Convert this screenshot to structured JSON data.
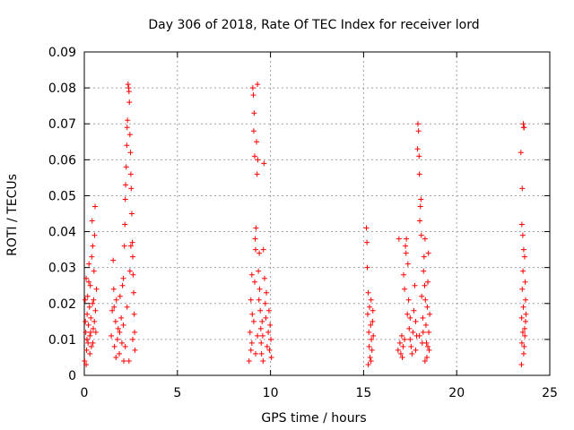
{
  "chart_data": {
    "type": "scatter",
    "title": "Day 306 of 2018, Rate Of TEC Index for receiver lord",
    "xlabel": "GPS time / hours",
    "ylabel": "ROTI / TECUs",
    "xlim": [
      0,
      25
    ],
    "ylim": [
      0,
      0.09
    ],
    "x_ticks": [
      0,
      5,
      10,
      15,
      20,
      25
    ],
    "x_tick_labels": [
      "0",
      "5",
      "10",
      "15",
      "20",
      "25"
    ],
    "y_ticks": [
      0,
      0.01,
      0.02,
      0.03,
      0.04,
      0.05,
      0.06,
      0.07,
      0.08,
      0.09
    ],
    "y_tick_labels": [
      "0",
      "0.01",
      "0.02",
      "0.03",
      "0.04",
      "0.05",
      "0.06",
      "0.07",
      "0.08",
      "0.09"
    ],
    "grid": true,
    "marker": "+",
    "color": "#ff0000",
    "series": [
      {
        "points": [
          [
            0.02,
            0.004
          ],
          [
            0.05,
            0.021
          ],
          [
            0.08,
            0.012
          ],
          [
            0.1,
            0.027
          ],
          [
            0.12,
            0.007
          ],
          [
            0.15,
            0.017
          ],
          [
            0.18,
            0.022
          ],
          [
            0.2,
            0.009
          ],
          [
            0.22,
            0.014
          ],
          [
            0.25,
            0.031
          ],
          [
            0.28,
            0.019
          ],
          [
            0.3,
            0.011
          ],
          [
            0.32,
            0.025
          ],
          [
            0.35,
            0.016
          ],
          [
            0.38,
            0.008
          ],
          [
            0.4,
            0.033
          ],
          [
            0.42,
            0.043
          ],
          [
            0.45,
            0.036
          ],
          [
            0.48,
            0.013
          ],
          [
            0.5,
            0.021
          ],
          [
            0.52,
            0.029
          ],
          [
            0.55,
            0.039
          ],
          [
            0.58,
            0.047
          ],
          [
            0.6,
            0.018
          ],
          [
            0.62,
            0.012
          ],
          [
            0.65,
            0.024
          ],
          [
            0.06,
            0.015
          ],
          [
            0.14,
            0.01
          ],
          [
            0.24,
            0.026
          ],
          [
            0.34,
            0.012
          ],
          [
            0.44,
            0.02
          ],
          [
            0.54,
            0.015
          ],
          [
            0.1,
            0.003
          ],
          [
            0.3,
            0.006
          ],
          [
            0.46,
            0.009
          ],
          [
            1.45,
            0.011
          ],
          [
            1.5,
            0.018
          ],
          [
            1.55,
            0.032
          ],
          [
            1.58,
            0.024
          ],
          [
            1.62,
            0.008
          ],
          [
            1.68,
            0.015
          ],
          [
            1.72,
            0.021
          ],
          [
            1.78,
            0.01
          ],
          [
            1.82,
            0.013
          ],
          [
            1.88,
            0.006
          ],
          [
            1.92,
            0.022
          ],
          [
            1.98,
            0.016
          ],
          [
            2.02,
            0.009
          ],
          [
            2.05,
            0.025
          ],
          [
            2.1,
            0.014
          ],
          [
            2.12,
            0.004
          ],
          [
            2.15,
            0.036
          ],
          [
            2.18,
            0.042
          ],
          [
            2.2,
            0.049
          ],
          [
            2.22,
            0.053
          ],
          [
            2.25,
            0.058
          ],
          [
            2.28,
            0.064
          ],
          [
            2.3,
            0.069
          ],
          [
            2.32,
            0.071
          ],
          [
            2.35,
            0.081
          ],
          [
            2.38,
            0.08
          ],
          [
            2.4,
            0.079
          ],
          [
            2.42,
            0.076
          ],
          [
            2.45,
            0.067
          ],
          [
            2.48,
            0.062
          ],
          [
            2.5,
            0.056
          ],
          [
            2.52,
            0.052
          ],
          [
            2.55,
            0.045
          ],
          [
            2.58,
            0.037
          ],
          [
            2.6,
            0.033
          ],
          [
            2.62,
            0.028
          ],
          [
            2.65,
            0.023
          ],
          [
            2.68,
            0.017
          ],
          [
            2.7,
            0.012
          ],
          [
            2.72,
            0.007
          ],
          [
            2.45,
            0.029
          ],
          [
            2.3,
            0.019
          ],
          [
            2.1,
            0.027
          ],
          [
            1.9,
            0.012
          ],
          [
            1.7,
            0.005
          ],
          [
            2.4,
            0.004
          ],
          [
            2.6,
            0.01
          ],
          [
            2.2,
            0.008
          ],
          [
            1.6,
            0.019
          ],
          [
            2.5,
            0.036
          ],
          [
            8.85,
            0.004
          ],
          [
            8.9,
            0.012
          ],
          [
            8.95,
            0.021
          ],
          [
            9.0,
            0.028
          ],
          [
            9.02,
            0.017
          ],
          [
            9.05,
            0.08
          ],
          [
            9.08,
            0.078
          ],
          [
            9.1,
            0.068
          ],
          [
            9.12,
            0.073
          ],
          [
            9.15,
            0.061
          ],
          [
            9.18,
            0.038
          ],
          [
            9.2,
            0.035
          ],
          [
            9.22,
            0.041
          ],
          [
            9.25,
            0.065
          ],
          [
            9.28,
            0.056
          ],
          [
            9.3,
            0.081
          ],
          [
            9.32,
            0.06
          ],
          [
            9.35,
            0.029
          ],
          [
            9.38,
            0.021
          ],
          [
            9.4,
            0.034
          ],
          [
            9.42,
            0.024
          ],
          [
            9.45,
            0.018
          ],
          [
            9.48,
            0.013
          ],
          [
            9.5,
            0.009
          ],
          [
            9.52,
            0.006
          ],
          [
            9.55,
            0.015
          ],
          [
            9.58,
            0.011
          ],
          [
            9.62,
            0.035
          ],
          [
            9.65,
            0.059
          ],
          [
            9.68,
            0.027
          ],
          [
            9.72,
            0.02
          ],
          [
            9.75,
            0.016
          ],
          [
            9.78,
            0.023
          ],
          [
            9.82,
            0.008
          ],
          [
            9.88,
            0.012
          ],
          [
            9.92,
            0.018
          ],
          [
            9.95,
            0.007
          ],
          [
            9.98,
            0.014
          ],
          [
            10.02,
            0.01
          ],
          [
            10.05,
            0.005
          ],
          [
            9.0,
            0.009
          ],
          [
            9.1,
            0.015
          ],
          [
            9.2,
            0.006
          ],
          [
            9.3,
            0.011
          ],
          [
            9.15,
            0.026
          ],
          [
            9.6,
            0.004
          ],
          [
            8.95,
            0.007
          ],
          [
            15.15,
            0.041
          ],
          [
            15.18,
            0.037
          ],
          [
            15.2,
            0.03
          ],
          [
            15.22,
            0.017
          ],
          [
            15.25,
            0.023
          ],
          [
            15.28,
            0.012
          ],
          [
            15.3,
            0.008
          ],
          [
            15.32,
            0.019
          ],
          [
            15.35,
            0.005
          ],
          [
            15.38,
            0.014
          ],
          [
            15.4,
            0.021
          ],
          [
            15.42,
            0.01
          ],
          [
            15.45,
            0.007
          ],
          [
            15.48,
            0.015
          ],
          [
            15.5,
            0.018
          ],
          [
            15.52,
            0.011
          ],
          [
            15.25,
            0.003
          ],
          [
            15.4,
            0.004
          ],
          [
            16.85,
            0.007
          ],
          [
            16.9,
            0.038
          ],
          [
            16.95,
            0.009
          ],
          [
            17.0,
            0.006
          ],
          [
            17.05,
            0.011
          ],
          [
            17.08,
            0.005
          ],
          [
            17.12,
            0.008
          ],
          [
            17.15,
            0.028
          ],
          [
            17.2,
            0.024
          ],
          [
            17.25,
            0.036
          ],
          [
            17.28,
            0.034
          ],
          [
            17.3,
            0.038
          ],
          [
            17.35,
            0.017
          ],
          [
            17.38,
            0.031
          ],
          [
            17.42,
            0.021
          ],
          [
            17.45,
            0.013
          ],
          [
            17.5,
            0.01
          ],
          [
            17.55,
            0.008
          ],
          [
            17.6,
            0.006
          ],
          [
            17.65,
            0.012
          ],
          [
            17.7,
            0.018
          ],
          [
            17.75,
            0.025
          ],
          [
            17.8,
            0.015
          ],
          [
            17.85,
            0.011
          ],
          [
            17.9,
            0.063
          ],
          [
            17.92,
            0.07
          ],
          [
            17.95,
            0.068
          ],
          [
            17.98,
            0.061
          ],
          [
            18.0,
            0.056
          ],
          [
            18.02,
            0.043
          ],
          [
            18.05,
            0.047
          ],
          [
            18.08,
            0.049
          ],
          [
            18.1,
            0.039
          ],
          [
            18.12,
            0.022
          ],
          [
            18.15,
            0.009
          ],
          [
            18.18,
            0.016
          ],
          [
            18.2,
            0.012
          ],
          [
            18.22,
            0.029
          ],
          [
            18.25,
            0.033
          ],
          [
            18.28,
            0.025
          ],
          [
            18.3,
            0.038
          ],
          [
            18.32,
            0.021
          ],
          [
            18.35,
            0.014
          ],
          [
            18.38,
            0.009
          ],
          [
            18.4,
            0.005
          ],
          [
            18.42,
            0.019
          ],
          [
            18.45,
            0.026
          ],
          [
            18.48,
            0.034
          ],
          [
            18.5,
            0.012
          ],
          [
            18.52,
            0.007
          ],
          [
            18.55,
            0.017
          ],
          [
            17.2,
            0.01
          ],
          [
            17.5,
            0.016
          ],
          [
            17.8,
            0.007
          ],
          [
            18.0,
            0.011
          ],
          [
            18.3,
            0.004
          ],
          [
            18.45,
            0.008
          ],
          [
            23.45,
            0.062
          ],
          [
            23.5,
            0.042
          ],
          [
            23.52,
            0.052
          ],
          [
            23.55,
            0.039
          ],
          [
            23.58,
            0.07
          ],
          [
            23.6,
            0.069
          ],
          [
            23.62,
            0.069
          ],
          [
            23.65,
            0.033
          ],
          [
            23.68,
            0.026
          ],
          [
            23.7,
            0.021
          ],
          [
            23.72,
            0.017
          ],
          [
            23.55,
            0.012
          ],
          [
            23.5,
            0.009
          ],
          [
            23.6,
            0.006
          ],
          [
            23.65,
            0.013
          ],
          [
            23.58,
            0.019
          ],
          [
            23.48,
            0.003
          ],
          [
            23.62,
            0.008
          ],
          [
            23.7,
            0.015
          ],
          [
            23.52,
            0.024
          ],
          [
            23.56,
            0.029
          ],
          [
            23.66,
            0.011
          ],
          [
            23.49,
            0.016
          ],
          [
            23.6,
            0.035
          ]
        ]
      }
    ]
  }
}
